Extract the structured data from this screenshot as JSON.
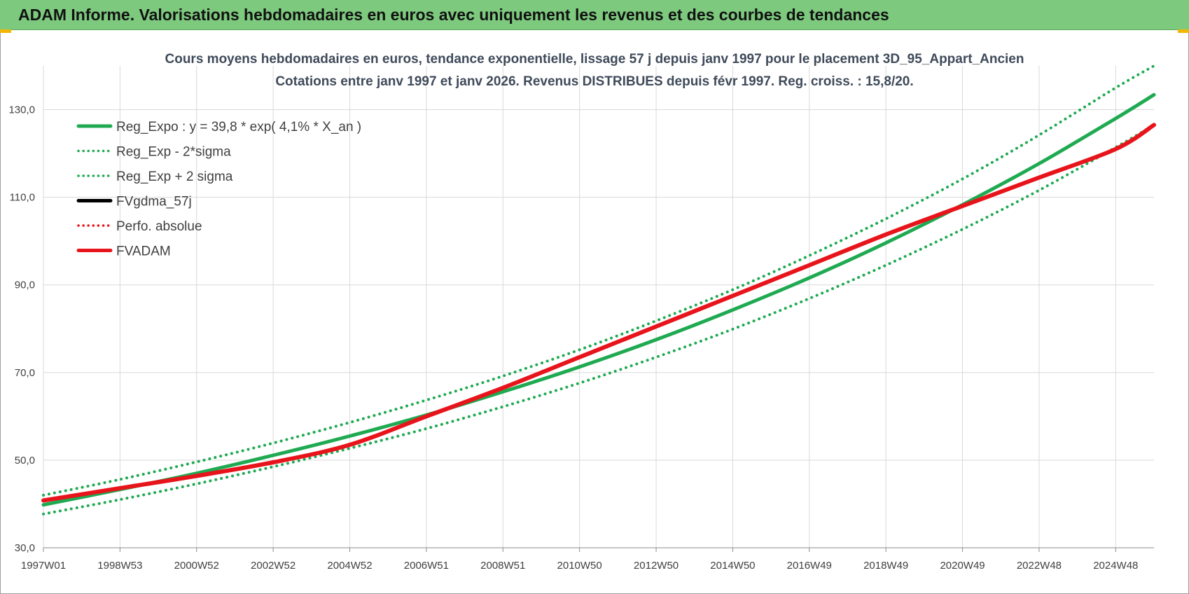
{
  "banner": {
    "title": "ADAM Informe. Valorisations hebdomadaires en euros avec uniquement les revenus et des courbes de tendances"
  },
  "colors": {
    "banner": "#7dc97e",
    "reg_expo": "#1faa52",
    "fv_adam": "#e8141b",
    "fv_gdma": "#000000",
    "grid": "#d9d9d9"
  },
  "chart_data": {
    "type": "line",
    "title": "Cours moyens hebdomadaires en euros, tendance exponentielle, lissage 57 j depuis janv 1997  pour le placement 3D_95_Appart_Ancien",
    "subtitle": "Cotations entre janv 1997 et janv 2026. Revenus DISTRIBUES depuis févr 1997. Reg. croiss. : 15,8/20.",
    "x_tick_labels": [
      "1997W01",
      "1998W53",
      "2000W52",
      "2002W52",
      "2004W52",
      "2006W51",
      "2008W51",
      "2010W50",
      "2012W50",
      "2014W50",
      "2016W49",
      "2018W49",
      "2020W49",
      "2022W48",
      "2024W48"
    ],
    "x_ticks_years": [
      1997.0,
      1999.0,
      2001.0,
      2003.0,
      2005.0,
      2007.0,
      2009.0,
      2011.0,
      2013.0,
      2015.0,
      2017.0,
      2019.0,
      2021.0,
      2023.0,
      2025.0
    ],
    "xlim": [
      1997.0,
      2026.0
    ],
    "ylim": [
      30,
      140
    ],
    "y_ticks": [
      30,
      50,
      70,
      90,
      110,
      130
    ],
    "y_tick_labels": [
      "30,0",
      "50,0",
      "70,0",
      "90,0",
      "110,0",
      "130,0"
    ],
    "grid": true,
    "legend_position": "top-left",
    "series": [
      {
        "name": "Reg_Expo : y = 39,8 * exp( 4,1% *  X_an )",
        "color": "#1faa52",
        "style": "solid",
        "x": [
          1997,
          1999,
          2001,
          2003,
          2005,
          2007,
          2009,
          2011,
          2013,
          2015,
          2017,
          2019,
          2021,
          2023,
          2025,
          2026
        ],
        "y": [
          39.8,
          43.3,
          47.0,
          51.1,
          55.5,
          60.3,
          65.6,
          71.3,
          77.5,
          84.3,
          91.6,
          99.6,
          108.3,
          117.7,
          128.0,
          133.4
        ]
      },
      {
        "name": "Reg_Exp - 2*sigma",
        "color": "#1faa52",
        "style": "dotted",
        "x": [
          1997,
          1999,
          2001,
          2003,
          2005,
          2007,
          2009,
          2011,
          2013,
          2015,
          2017,
          2019,
          2021,
          2023,
          2025,
          2026
        ],
        "y": [
          37.7,
          41.0,
          44.6,
          48.5,
          52.7,
          57.2,
          62.2,
          67.6,
          73.5,
          79.9,
          86.9,
          94.5,
          102.7,
          111.6,
          121.4,
          126.5
        ]
      },
      {
        "name": "Reg_Exp + 2 sigma",
        "color": "#1faa52",
        "style": "dotted",
        "x": [
          1997,
          1999,
          2001,
          2003,
          2005,
          2007,
          2009,
          2011,
          2013,
          2015,
          2017,
          2019,
          2021,
          2023,
          2025,
          2026
        ],
        "y": [
          42.0,
          45.6,
          49.6,
          53.9,
          58.6,
          63.7,
          69.2,
          75.2,
          81.8,
          88.9,
          96.7,
          105.1,
          114.2,
          124.2,
          135.0,
          140.0
        ]
      },
      {
        "name": "FVgdma_57j",
        "color": "#000000",
        "style": "solid",
        "x": [],
        "y": []
      },
      {
        "name": "Perfo. absolue",
        "color": "#e8141b",
        "style": "dotted",
        "x": [],
        "y": []
      },
      {
        "name": "FVADAM",
        "color": "#e8141b",
        "style": "solid",
        "x": [
          1997,
          1999,
          2001,
          2003,
          2005,
          2007,
          2009,
          2011,
          2013,
          2015,
          2017,
          2019,
          2021,
          2023,
          2025,
          2026
        ],
        "y": [
          40.8,
          43.6,
          46.4,
          49.5,
          53.5,
          60.0,
          66.5,
          73.5,
          80.5,
          87.5,
          94.5,
          101.5,
          108.0,
          114.5,
          121.0,
          126.5
        ]
      }
    ]
  }
}
